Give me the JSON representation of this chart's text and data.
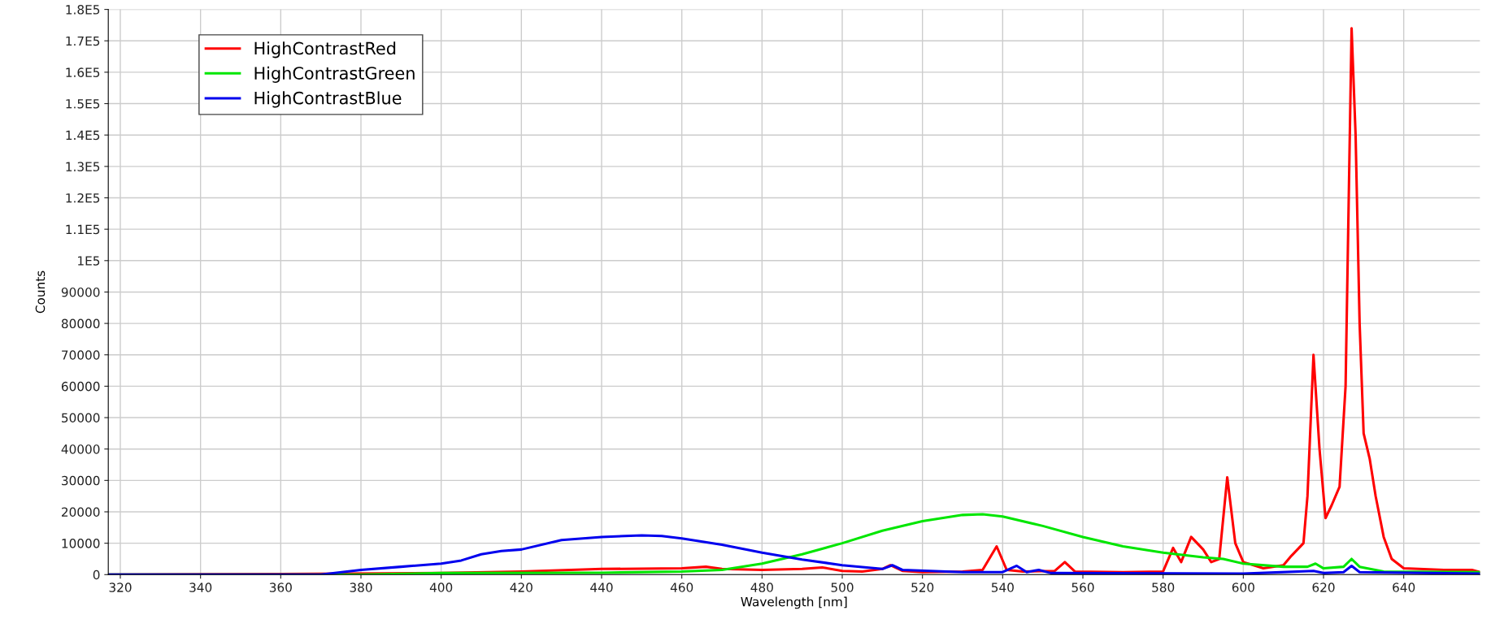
{
  "chart_data": {
    "type": "line",
    "xlabel": "Wavelength [nm]",
    "ylabel": "Counts",
    "xlim": [
      317,
      659
    ],
    "ylim": [
      0,
      180000
    ],
    "xticks": [
      320,
      340,
      360,
      380,
      400,
      420,
      440,
      460,
      480,
      500,
      520,
      540,
      560,
      580,
      600,
      620,
      640
    ],
    "yticks": [
      0,
      10000,
      20000,
      30000,
      40000,
      50000,
      60000,
      70000,
      80000,
      90000,
      {
        "value": 100000,
        "label": "1E5"
      },
      {
        "value": 110000,
        "label": "1.1E5"
      },
      {
        "value": 120000,
        "label": "1.2E5"
      },
      {
        "value": 130000,
        "label": "1.3E5"
      },
      {
        "value": 140000,
        "label": "1.4E5"
      },
      {
        "value": 150000,
        "label": "1.5E5"
      },
      {
        "value": 160000,
        "label": "1.6E5"
      },
      {
        "value": 170000,
        "label": "1.7E5"
      },
      {
        "value": 180000,
        "label": "1.8E5"
      }
    ],
    "grid": true,
    "legend": "top left",
    "marker": "none",
    "line_style": "solid",
    "series": [
      {
        "name": "HighContrastRed",
        "color": "#ff0000",
        "x": [
          317,
          360,
          400,
          420,
          440,
          460,
          466,
          470,
          480,
          490,
          495,
          500,
          505,
          510,
          512,
          515,
          520,
          530,
          535,
          538.5,
          541,
          545,
          553,
          555.5,
          558,
          570,
          580,
          582.5,
          584.5,
          587,
          590,
          592,
          594,
          596,
          598,
          600,
          605,
          610,
          612,
          615,
          616,
          617.5,
          619,
          620.5,
          622,
          624,
          625.5,
          627,
          628,
          629,
          630,
          631.5,
          633,
          635,
          637,
          640,
          650,
          657,
          659
        ],
        "values": [
          0,
          200,
          500,
          1000,
          1800,
          2000,
          2500,
          1800,
          1500,
          1800,
          2300,
          1200,
          1000,
          1800,
          3000,
          1200,
          800,
          1000,
          1500,
          9000,
          1500,
          1000,
          1200,
          4000,
          1000,
          800,
          1000,
          8500,
          4000,
          12000,
          8000,
          4000,
          5000,
          31000,
          10000,
          4000,
          2000,
          3000,
          6000,
          10000,
          25000,
          70000,
          40000,
          18000,
          22000,
          28000,
          60000,
          174000,
          140000,
          80000,
          45000,
          37000,
          25000,
          12000,
          5000,
          2000,
          1500,
          1500,
          800
        ]
      },
      {
        "name": "HighContrastGreen",
        "color": "#00e600",
        "x": [
          317,
          380,
          400,
          440,
          460,
          470,
          480,
          490,
          500,
          510,
          520,
          530,
          535,
          540,
          550,
          560,
          570,
          580,
          590,
          595,
          600,
          610,
          616,
          618,
          620,
          625,
          627,
          629,
          635,
          659
        ],
        "values": [
          0,
          0,
          500,
          600,
          1000,
          1500,
          3500,
          6500,
          10000,
          14000,
          17000,
          19000,
          19200,
          18500,
          15500,
          12000,
          9000,
          7000,
          5500,
          5000,
          3500,
          2500,
          2500,
          3500,
          2000,
          2500,
          5000,
          2500,
          1000,
          800
        ]
      },
      {
        "name": "HighContrastBlue",
        "color": "#0000ee",
        "x": [
          317,
          370,
          380,
          390,
          400,
          405,
          410,
          415,
          420,
          430,
          440,
          450,
          455,
          460,
          470,
          480,
          490,
          500,
          510,
          512.5,
          515,
          530,
          540,
          543.5,
          546,
          549,
          552,
          600,
          617.5,
          620,
          625,
          627,
          629,
          659
        ],
        "values": [
          0,
          0,
          1500,
          2500,
          3500,
          4500,
          6500,
          7500,
          8000,
          11000,
          12000,
          12500,
          12300,
          11500,
          9500,
          7000,
          4800,
          3000,
          1800,
          3000,
          1500,
          800,
          800,
          2800,
          800,
          1500,
          500,
          300,
          1200,
          500,
          800,
          2800,
          800,
          300
        ]
      }
    ]
  }
}
